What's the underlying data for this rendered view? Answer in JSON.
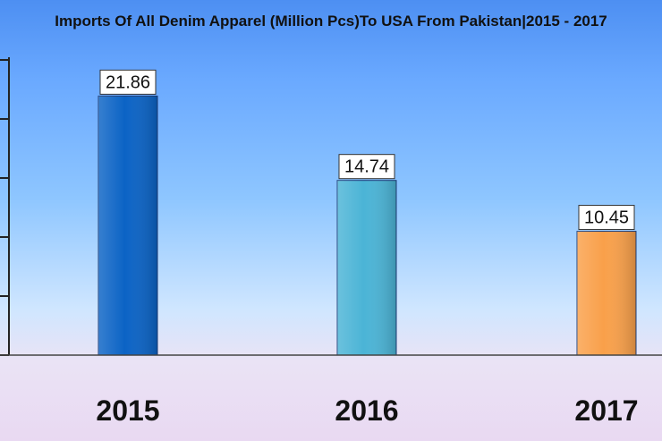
{
  "chart_data": {
    "type": "bar",
    "title": "Imports Of All Denim Apparel (Million Pcs)To USA From Pakistan|2015 - 2017",
    "categories": [
      "2015",
      "2016",
      "2017"
    ],
    "values": [
      21.86,
      14.74,
      10.45
    ],
    "data_labels": [
      "21.86",
      "14.74",
      "10.45"
    ],
    "bar_colors": [
      "#0b63c5",
      "#4bb4d6",
      "#f9a04a"
    ],
    "ylim": [
      0,
      25
    ],
    "xlabel": "",
    "ylabel": "",
    "grid": false,
    "legend": "none"
  }
}
